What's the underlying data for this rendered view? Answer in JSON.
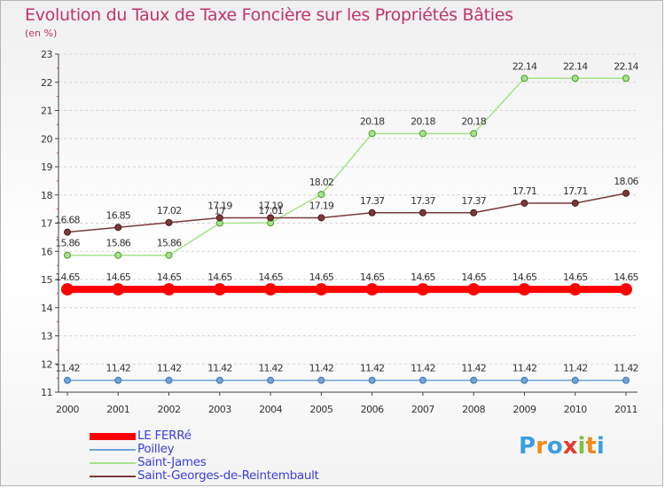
{
  "header": {
    "title": "Evolution du Taux de Taxe Foncière sur les Propriétés Bâties",
    "subtitle": "(en %)"
  },
  "chart_data": {
    "type": "line",
    "title": "Evolution du Taux de Taxe Foncière sur les Propriétés Bâties",
    "ylabel": "(en %)",
    "xlabel": "",
    "x": [
      "2000",
      "2001",
      "2002",
      "2003",
      "2004",
      "2005",
      "2006",
      "2007",
      "2008",
      "2009",
      "2010",
      "2011"
    ],
    "ylim": [
      11,
      23
    ],
    "yticks": [
      11,
      12,
      13,
      14,
      15,
      16,
      17,
      18,
      19,
      20,
      21,
      22,
      23
    ],
    "grid": "horizontal",
    "legend_position": "bottom-left",
    "series": [
      {
        "name": "LE FERRé",
        "color": "#ff0000",
        "values": [
          14.65,
          14.65,
          14.65,
          14.65,
          14.65,
          14.65,
          14.65,
          14.65,
          14.65,
          14.65,
          14.65,
          14.65
        ],
        "labels": [
          "14.65",
          "14.65",
          "14.65",
          "14.65",
          "14.65",
          "14.65",
          "14.65",
          "14.65",
          "14.65",
          "14.65",
          "14.65",
          "14.65"
        ]
      },
      {
        "name": "Poilley",
        "color": "#6fa3d6",
        "values": [
          11.42,
          11.42,
          11.42,
          11.42,
          11.42,
          11.42,
          11.42,
          11.42,
          11.42,
          11.42,
          11.42,
          11.42
        ],
        "labels": [
          "11.42",
          "11.42",
          "11.42",
          "11.42",
          "11.42",
          "11.42",
          "11.42",
          "11.42",
          "11.42",
          "11.42",
          "11.42",
          "11.42"
        ]
      },
      {
        "name": "Saint-James",
        "color": "#a6e38c",
        "values": [
          15.86,
          15.86,
          15.86,
          17,
          17.01,
          18.02,
          20.18,
          20.18,
          20.18,
          22.14,
          22.14,
          22.14
        ],
        "labels": [
          "15.86",
          "15.86",
          "15.86",
          "17",
          "17.01",
          "18.02",
          "20.18",
          "20.18",
          "20.18",
          "22.14",
          "22.14",
          "22.14"
        ]
      },
      {
        "name": "Saint-Georges-de-Reintembault",
        "color": "#7a3a3a",
        "values": [
          16.68,
          16.85,
          17.02,
          17.19,
          17.19,
          17.19,
          17.37,
          17.37,
          17.37,
          17.71,
          17.71,
          18.06
        ],
        "labels": [
          "16.68",
          "16.85",
          "17.02",
          "17.19",
          "17.19",
          "17.19",
          "17.37",
          "17.37",
          "17.37",
          "17.71",
          "17.71",
          "18.06"
        ]
      }
    ]
  },
  "legend": {
    "items": [
      {
        "label": "LE FERRé",
        "color": "#ff0000"
      },
      {
        "label": "Poilley",
        "color": "#6fa3d6"
      },
      {
        "label": "Saint-James",
        "color": "#a6e38c"
      },
      {
        "label": "Saint-Georges-de-Reintembault",
        "color": "#7a3a3a"
      }
    ]
  },
  "logo": {
    "text": "Proxiti",
    "letters": [
      "P",
      "r",
      "o",
      "x",
      "i",
      "t",
      "i"
    ],
    "colors": [
      "#3aa0e0",
      "#f08a1c",
      "#3aa0e0",
      "#e63a2e",
      "#7cc242",
      "#f08a1c",
      "#3aa0e0"
    ]
  }
}
